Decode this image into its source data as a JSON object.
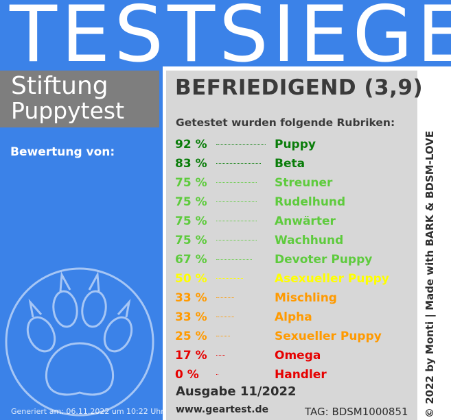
{
  "banner": {
    "title": "TESTSIEGER"
  },
  "brand": {
    "line1": "Stiftung",
    "line2": "Puppytest"
  },
  "left": {
    "rated_by": "Bewertung von:",
    "generated": "Generiert am: 06.11.2022 um 10:22 Uhr",
    "paw_icon": "paw-print-icon"
  },
  "result": {
    "rating": "BEFRIEDIGEND (3,9)",
    "intro": "Getestet wurden folgende Rubriken:",
    "categories": [
      {
        "percent": "92 %",
        "name": "Puppy",
        "value": 92,
        "color": "#0a7d0a"
      },
      {
        "percent": "83 %",
        "name": "Beta",
        "value": 83,
        "color": "#0a7d0a"
      },
      {
        "percent": "75 %",
        "name": "Streuner",
        "value": 75,
        "color": "#5ecb3d"
      },
      {
        "percent": "75 %",
        "name": "Rudelhund",
        "value": 75,
        "color": "#5ecb3d"
      },
      {
        "percent": "75 %",
        "name": "Anwärter",
        "value": 75,
        "color": "#5ecb3d"
      },
      {
        "percent": "75 %",
        "name": "Wachhund",
        "value": 75,
        "color": "#5ecb3d"
      },
      {
        "percent": "67 %",
        "name": "Devoter Puppy",
        "value": 67,
        "color": "#5ecb3d"
      },
      {
        "percent": "50 %",
        "name": "Asexueller Puppy",
        "value": 50,
        "color": "#ffff00"
      },
      {
        "percent": "33 %",
        "name": "Mischling",
        "value": 33,
        "color": "#ff9a00"
      },
      {
        "percent": "33 %",
        "name": "Alpha",
        "value": 33,
        "color": "#ff9a00"
      },
      {
        "percent": "25 %",
        "name": "Sexueller Puppy",
        "value": 25,
        "color": "#ff9a00"
      },
      {
        "percent": "17 %",
        "name": "Omega",
        "value": 17,
        "color": "#e60000"
      },
      {
        "percent": "0 %",
        "name": "Handler",
        "value": 0,
        "color": "#e60000"
      }
    ]
  },
  "footer": {
    "issue": "Ausgabe 11/2022",
    "url": "www.geartest.de",
    "tag": "TAG: BDSM1000851",
    "copyright": "© 2022 by Monti | Made with BARK & BDSM-LOVE"
  },
  "colors": {
    "blue": "#3b82e8",
    "brand_gray": "#7e7e7e",
    "panel_gray": "#d7d7d7"
  }
}
